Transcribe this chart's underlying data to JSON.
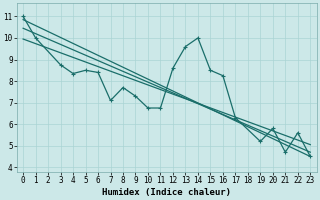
{
  "title": "",
  "xlabel": "Humidex (Indice chaleur)",
  "bg_color": "#cce8e8",
  "line_color": "#1a6e6a",
  "grid_color": "#aad4d4",
  "xlim": [
    -0.5,
    23.5
  ],
  "ylim": [
    3.8,
    11.6
  ],
  "yticks": [
    4,
    5,
    6,
    7,
    8,
    9,
    10,
    11
  ],
  "xticks": [
    0,
    1,
    2,
    3,
    4,
    5,
    6,
    7,
    8,
    9,
    10,
    11,
    12,
    13,
    14,
    15,
    16,
    17,
    18,
    19,
    20,
    21,
    22,
    23
  ],
  "curve_x": [
    0,
    1,
    3,
    4,
    5,
    6,
    7,
    8,
    9,
    10,
    11,
    12,
    13,
    14,
    15,
    16,
    17,
    19,
    20,
    21,
    22,
    23
  ],
  "curve_y": [
    11.0,
    10.0,
    8.75,
    8.35,
    8.5,
    8.4,
    7.1,
    7.7,
    7.3,
    6.75,
    6.75,
    8.6,
    9.6,
    10.0,
    8.5,
    8.25,
    6.3,
    5.2,
    5.8,
    4.7,
    5.6,
    4.5
  ],
  "line1_x": [
    0,
    23
  ],
  "line1_y": [
    10.85,
    4.5
  ],
  "line2_x": [
    0,
    23
  ],
  "line2_y": [
    10.45,
    4.7
  ],
  "line3_x": [
    0,
    23
  ],
  "line3_y": [
    9.95,
    5.05
  ],
  "tick_fontsize": 5.5,
  "xlabel_fontsize": 6.5
}
